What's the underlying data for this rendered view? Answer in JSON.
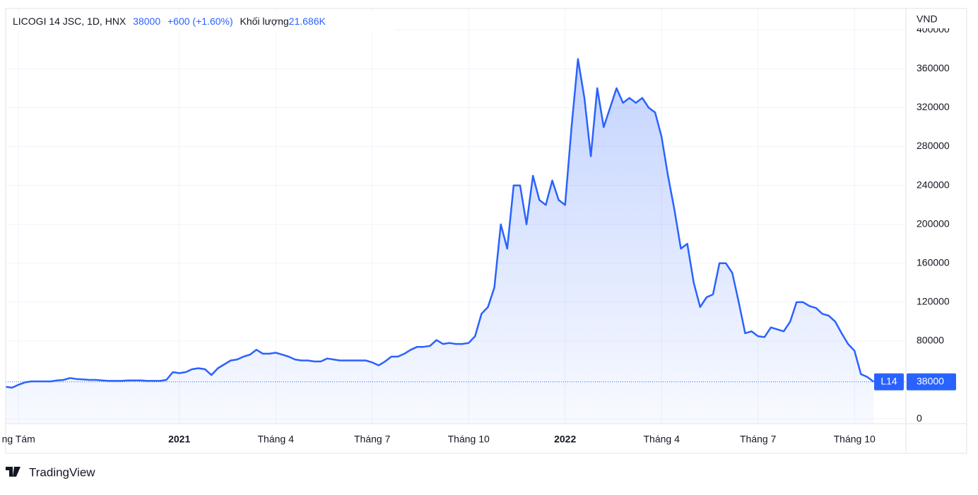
{
  "chart_data": {
    "type": "area",
    "title": "LICOGI 14 JSC, 1D, HNX",
    "price": 38000,
    "change": "+600 (+1.60%)",
    "volume_label": "Khối lượng",
    "volume": "21.686K",
    "y_label": "VND",
    "symbol_badge": "L14",
    "brand": "TradingView",
    "color": "#2962ff",
    "grid": true,
    "ylim": [
      -5000,
      422000
    ],
    "yticks": [
      0,
      80000,
      120000,
      160000,
      200000,
      240000,
      280000,
      320000,
      360000,
      400000
    ],
    "categories": [
      null,
      null,
      "ng Tám",
      null,
      null,
      null,
      null,
      null,
      null,
      null,
      null,
      null,
      null,
      null,
      null,
      null,
      null,
      null,
      null,
      null,
      null,
      null,
      null,
      null,
      null,
      null,
      null,
      "2021",
      null,
      null,
      null,
      null,
      null,
      null,
      null,
      null,
      null,
      null,
      null,
      null,
      null,
      null,
      "Tháng 4",
      null,
      null,
      null,
      null,
      null,
      null,
      null,
      null,
      null,
      null,
      null,
      null,
      null,
      null,
      "Tháng 7",
      null,
      null,
      null,
      null,
      null,
      null,
      null,
      null,
      null,
      null,
      null,
      null,
      null,
      null,
      "Tháng 10",
      null,
      null,
      null,
      null,
      null,
      null,
      null,
      null,
      null,
      null,
      null,
      null,
      null,
      null,
      "2022",
      null,
      null,
      null,
      null,
      null,
      null,
      null,
      null,
      null,
      null,
      null,
      null,
      null,
      null,
      "Tháng 4",
      null,
      null,
      null,
      null,
      null,
      null,
      null,
      null,
      null,
      null,
      null,
      null,
      null,
      null,
      "Tháng 7",
      null,
      null,
      null,
      null,
      null,
      null,
      null,
      null,
      null,
      null,
      null,
      null,
      null,
      null,
      "Tháng 10",
      null,
      null,
      null
    ],
    "values": [
      33000,
      32000,
      35000,
      37500,
      38500,
      38500,
      38500,
      38500,
      39500,
      40000,
      42000,
      41000,
      40500,
      40000,
      40000,
      39500,
      39000,
      39000,
      39000,
      39500,
      39500,
      39500,
      39000,
      39000,
      39000,
      40000,
      48000,
      47000,
      48000,
      51000,
      52000,
      51000,
      45000,
      52000,
      56000,
      60000,
      61000,
      64000,
      66000,
      71000,
      67000,
      67000,
      68000,
      66000,
      64000,
      61000,
      60000,
      60000,
      59000,
      59000,
      62000,
      61000,
      60000,
      60000,
      60000,
      60000,
      60000,
      58000,
      55000,
      59000,
      64000,
      64000,
      67000,
      71000,
      74000,
      74000,
      75000,
      81000,
      77000,
      78000,
      77000,
      77000,
      78000,
      85000,
      108000,
      115000,
      135000,
      200000,
      175000,
      240000,
      240000,
      200000,
      250000,
      225000,
      220000,
      245000,
      225000,
      220000,
      300000,
      370000,
      330000,
      270000,
      340000,
      300000,
      320000,
      340000,
      325000,
      330000,
      325000,
      330000,
      320000,
      315000,
      290000,
      250000,
      215000,
      175000,
      180000,
      140000,
      115000,
      125000,
      128000,
      160000,
      160000,
      150000,
      120000,
      88000,
      90000,
      85000,
      84000,
      94000,
      92000,
      90000,
      100000,
      120000,
      120000,
      116000,
      114000,
      108000,
      106000,
      100000,
      88000,
      77000,
      70000,
      46000,
      43000,
      38000
    ]
  }
}
